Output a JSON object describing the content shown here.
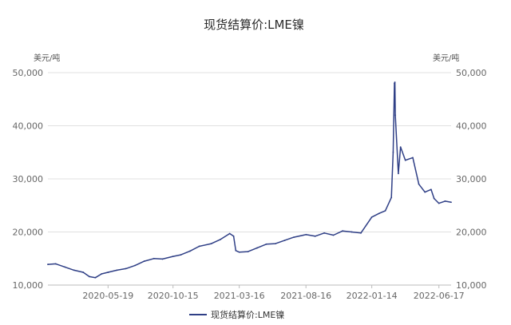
{
  "chart_data": {
    "type": "line",
    "title": "现货结算价:LME镍",
    "y_unit_left": "美元/吨",
    "y_unit_right": "美元/吨",
    "ylim": [
      10000,
      50000
    ],
    "y_ticks": [
      10000,
      20000,
      30000,
      40000,
      50000
    ],
    "y_tick_labels": [
      "10,000",
      "20,000",
      "30,000",
      "40,000",
      "50,000"
    ],
    "xlim": [
      "2020-01-02",
      "2022-07-15"
    ],
    "x_ticks": [
      "2020-05-19",
      "2020-10-15",
      "2021-03-16",
      "2021-08-16",
      "2022-01-14",
      "2022-06-17"
    ],
    "x_tick_labels": [
      "2020-05-19",
      "2020-10-15",
      "2021-03-16",
      "2021-08-16",
      "2022-01-14",
      "2022-06-17"
    ],
    "grid": "horizontal",
    "legend_position": "bottom-left",
    "colors": {
      "series": "#2f3f86",
      "grid": "#e0e0e0",
      "axis": "#bbbbbb"
    },
    "series": [
      {
        "name": "现货结算价:LME镍",
        "x": [
          "2020-01-02",
          "2020-01-20",
          "2020-02-10",
          "2020-03-02",
          "2020-03-23",
          "2020-04-06",
          "2020-04-20",
          "2020-05-04",
          "2020-05-19",
          "2020-06-08",
          "2020-06-29",
          "2020-07-20",
          "2020-08-10",
          "2020-09-01",
          "2020-09-21",
          "2020-10-15",
          "2020-11-02",
          "2020-11-23",
          "2020-12-14",
          "2021-01-11",
          "2021-02-01",
          "2021-02-22",
          "2021-03-03",
          "2021-03-08",
          "2021-03-16",
          "2021-04-05",
          "2021-04-26",
          "2021-05-17",
          "2021-06-07",
          "2021-06-28",
          "2021-07-19",
          "2021-08-16",
          "2021-09-06",
          "2021-09-27",
          "2021-10-18",
          "2021-11-08",
          "2021-11-29",
          "2021-12-20",
          "2022-01-14",
          "2022-01-31",
          "2022-02-14",
          "2022-02-28",
          "2022-03-04",
          "2022-03-07",
          "2022-03-08",
          "2022-03-09",
          "2022-03-16",
          "2022-03-21",
          "2022-04-01",
          "2022-04-18",
          "2022-05-02",
          "2022-05-16",
          "2022-05-30",
          "2022-06-06",
          "2022-06-17",
          "2022-07-01",
          "2022-07-15"
        ],
        "values": [
          13900,
          14000,
          13400,
          12800,
          12400,
          11600,
          11400,
          12100,
          12400,
          12800,
          13100,
          13700,
          14500,
          15000,
          14900,
          15400,
          15700,
          16400,
          17300,
          17800,
          18600,
          19700,
          19200,
          16500,
          16200,
          16300,
          17000,
          17700,
          17800,
          18400,
          19000,
          19500,
          19200,
          19800,
          19400,
          20200,
          20000,
          19800,
          22800,
          23500,
          24000,
          26500,
          35000,
          48000,
          48200,
          42000,
          31000,
          36000,
          33500,
          34000,
          29000,
          27500,
          28000,
          26300,
          25400,
          25800,
          25600
        ]
      }
    ]
  }
}
